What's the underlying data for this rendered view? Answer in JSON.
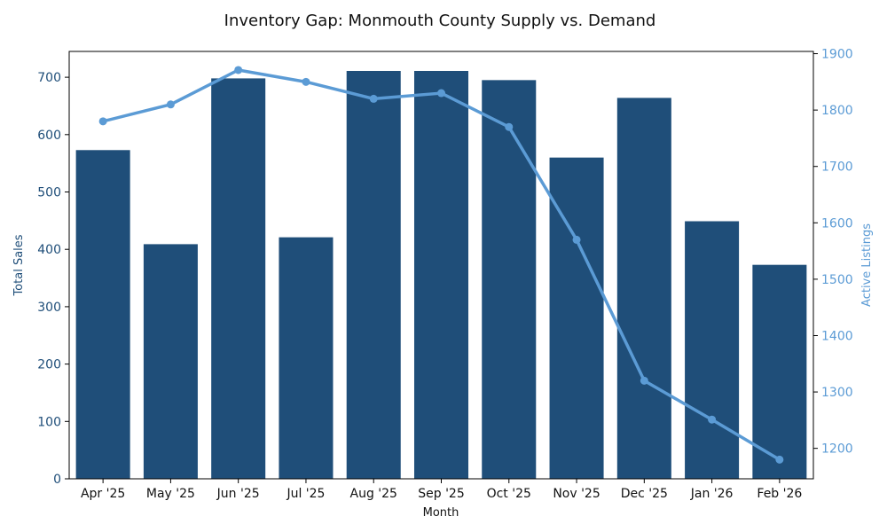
{
  "chart_data": {
    "type": "bar",
    "title": "Inventory Gap: Monmouth County Supply vs. Demand",
    "xlabel": "Month",
    "ylabel": "Total Sales",
    "y2label": "Active Listings",
    "categories": [
      "Apr '25",
      "May '25",
      "Jun '25",
      "Jul '25",
      "Aug '25",
      "Sep '25",
      "Oct '25",
      "Nov '25",
      "Dec '25",
      "Jan '26",
      "Feb '26"
    ],
    "series": [
      {
        "name": "Total Sales",
        "type": "bar",
        "axis": "left",
        "values": [
          573,
          409,
          698,
          421,
          711,
          711,
          695,
          560,
          664,
          449,
          373
        ]
      },
      {
        "name": "Active Listings",
        "type": "line",
        "axis": "right",
        "values": [
          1780,
          1810,
          1871,
          1850,
          1820,
          1830,
          1770,
          1570,
          1320,
          1251,
          1180
        ]
      }
    ],
    "ylim": [
      0,
      745
    ],
    "y2lim": [
      1146,
      1904
    ],
    "yticks": [
      0,
      100,
      200,
      300,
      400,
      500,
      600,
      700
    ],
    "y2ticks": [
      1200,
      1300,
      1400,
      1500,
      1600,
      1700,
      1800,
      1900
    ],
    "colors": {
      "bar": "#1f4e79",
      "line": "#5b9bd5",
      "left_axis_text": "#1f4e79",
      "right_axis_text": "#5b9bd5"
    }
  }
}
